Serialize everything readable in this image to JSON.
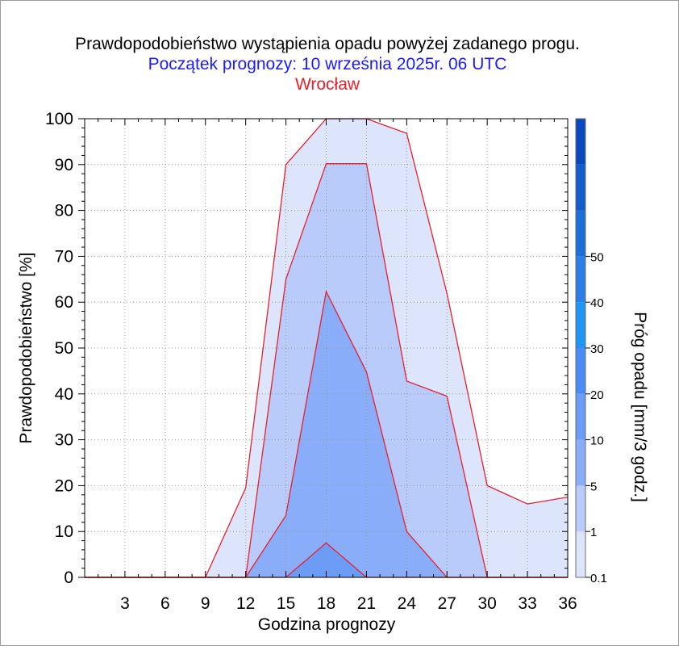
{
  "chart_data": {
    "type": "area",
    "title": "Prawdopodobieństwo wystąpienia opadu powyżej zadanego progu.",
    "subtitle": "Początek prognozy: 10 września 2025r. 06 UTC",
    "location": "Wrocław",
    "xlabel": "Godzina prognozy",
    "ylabel": "Prawdopodobieństwo [%]",
    "colorbar_label": "Próg opadu [mm/3 godz.]",
    "xlim": [
      0,
      36
    ],
    "ylim": [
      0,
      100
    ],
    "x_ticks": [
      3,
      6,
      9,
      12,
      15,
      18,
      21,
      24,
      27,
      30,
      33,
      36
    ],
    "y_ticks": [
      0,
      10,
      20,
      30,
      40,
      50,
      60,
      70,
      80,
      90,
      100
    ],
    "x": [
      0,
      3,
      6,
      9,
      12,
      15,
      18,
      21,
      24,
      27,
      30,
      33,
      36
    ],
    "series": [
      {
        "threshold": "0.1",
        "color": "#dde5fd",
        "values": [
          0,
          0,
          0,
          0,
          19.5,
          90,
          100,
          100,
          96.8,
          61.9,
          20,
          16,
          17.5
        ]
      },
      {
        "threshold": "1",
        "color": "#b9cbfb",
        "values": [
          0,
          0,
          0,
          0,
          0,
          65,
          90.2,
          90.2,
          42.8,
          39.5,
          0,
          0,
          0
        ]
      },
      {
        "threshold": "5",
        "color": "#89adf9",
        "values": [
          0,
          0,
          0,
          0,
          0,
          13.5,
          62.3,
          44.8,
          10,
          0,
          0,
          0,
          0
        ]
      },
      {
        "threshold": "10",
        "color": "#6b9df7",
        "values": [
          0,
          0,
          0,
          0,
          0,
          0,
          7.5,
          0,
          0,
          0,
          0,
          0,
          0
        ]
      }
    ],
    "colorbar": {
      "labels": [
        "0.1",
        "1",
        "5",
        "10",
        "20",
        "30",
        "40",
        "50"
      ],
      "colors": [
        "#dde5fd",
        "#b9cbfb",
        "#89adf9",
        "#6b9df7",
        "#4a8cf5",
        "#1f96f3",
        "#2c7fe8",
        "#1b6fd8",
        "#125ccc",
        "#0a48bf"
      ]
    },
    "grid": true,
    "outline_color": "#e8202a"
  }
}
